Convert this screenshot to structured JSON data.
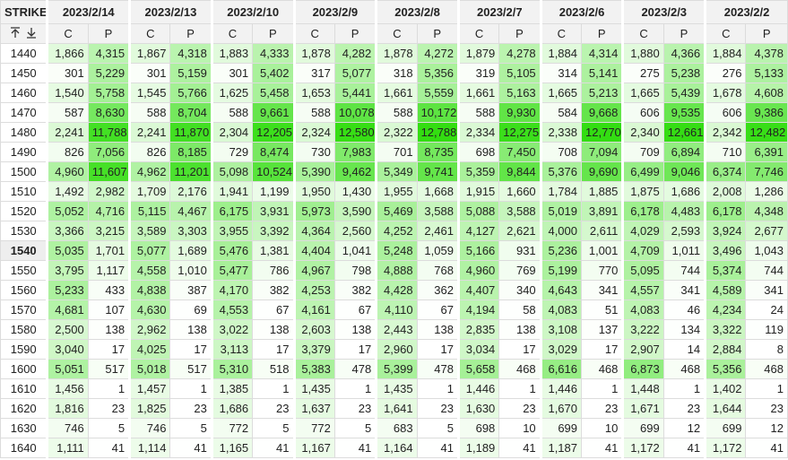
{
  "table": {
    "header": "STRIKE",
    "dates": [
      "2023/2/14",
      "2023/2/13",
      "2023/2/10",
      "2023/2/9",
      "2023/2/8",
      "2023/2/7",
      "2023/2/6",
      "2023/2/3",
      "2023/2/2"
    ],
    "sub": [
      "C",
      "P"
    ],
    "rows": [
      [
        "1440",
        "1,866",
        "4,315",
        "1,867",
        "4,318",
        "1,883",
        "4,333",
        "1,878",
        "4,282",
        "1,878",
        "4,272",
        "1,879",
        "4,278",
        "1,884",
        "4,314",
        "1,880",
        "4,366",
        "1,884",
        "4,378"
      ],
      [
        "1450",
        "301",
        "5,229",
        "301",
        "5,159",
        "301",
        "5,402",
        "317",
        "5,077",
        "318",
        "5,356",
        "319",
        "5,105",
        "314",
        "5,141",
        "275",
        "5,238",
        "276",
        "5,133"
      ],
      [
        "1460",
        "1,540",
        "5,758",
        "1,545",
        "5,766",
        "1,625",
        "5,458",
        "1,653",
        "5,441",
        "1,661",
        "5,559",
        "1,661",
        "5,163",
        "1,665",
        "5,213",
        "1,665",
        "5,439",
        "1,678",
        "4,608"
      ],
      [
        "1470",
        "587",
        "8,630",
        "588",
        "8,704",
        "588",
        "9,661",
        "588",
        "10,078",
        "588",
        "10,172",
        "588",
        "9,930",
        "584",
        "9,668",
        "606",
        "9,535",
        "606",
        "9,386"
      ],
      [
        "1480",
        "2,241",
        "11,788",
        "2,241",
        "11,870",
        "2,304",
        "12,205",
        "2,324",
        "12,580",
        "2,322",
        "12,788",
        "2,334",
        "12,275",
        "2,338",
        "12,770",
        "2,340",
        "12,661",
        "2,342",
        "12,482"
      ],
      [
        "1490",
        "826",
        "7,056",
        "826",
        "8,185",
        "729",
        "8,474",
        "730",
        "7,983",
        "701",
        "8,735",
        "698",
        "7,450",
        "708",
        "7,094",
        "709",
        "6,894",
        "710",
        "6,391"
      ],
      [
        "1500",
        "4,960",
        "11,607",
        "4,962",
        "11,201",
        "5,098",
        "10,524",
        "5,390",
        "9,462",
        "5,349",
        "9,741",
        "5,359",
        "9,844",
        "5,376",
        "9,690",
        "6,499",
        "9,046",
        "6,374",
        "7,746"
      ],
      [
        "1510",
        "1,492",
        "2,982",
        "1,709",
        "2,176",
        "1,941",
        "1,199",
        "1,950",
        "1,430",
        "1,955",
        "1,668",
        "1,915",
        "1,660",
        "1,784",
        "1,885",
        "1,875",
        "1,686",
        "2,008",
        "1,286"
      ],
      [
        "1520",
        "5,052",
        "4,716",
        "5,115",
        "4,467",
        "6,175",
        "3,931",
        "5,973",
        "3,590",
        "5,469",
        "3,588",
        "5,088",
        "3,588",
        "5,019",
        "3,891",
        "6,178",
        "4,483",
        "6,178",
        "4,348"
      ],
      [
        "1530",
        "3,366",
        "3,215",
        "3,589",
        "3,303",
        "3,955",
        "3,392",
        "4,364",
        "2,560",
        "4,252",
        "2,461",
        "4,127",
        "2,621",
        "4,000",
        "2,611",
        "4,029",
        "2,593",
        "3,924",
        "2,677"
      ],
      [
        "1540",
        "5,035",
        "1,701",
        "5,077",
        "1,689",
        "5,476",
        "1,381",
        "4,404",
        "1,041",
        "5,248",
        "1,059",
        "5,166",
        "931",
        "5,236",
        "1,001",
        "4,709",
        "1,011",
        "3,496",
        "1,043"
      ],
      [
        "1550",
        "3,795",
        "1,117",
        "4,558",
        "1,010",
        "5,477",
        "786",
        "4,967",
        "798",
        "4,888",
        "768",
        "4,960",
        "769",
        "5,199",
        "770",
        "5,095",
        "744",
        "5,374",
        "744"
      ],
      [
        "1560",
        "5,233",
        "433",
        "4,838",
        "387",
        "4,170",
        "382",
        "4,253",
        "382",
        "4,428",
        "362",
        "4,407",
        "340",
        "4,643",
        "341",
        "4,557",
        "341",
        "4,589",
        "341"
      ],
      [
        "1570",
        "4,681",
        "107",
        "4,630",
        "69",
        "4,553",
        "67",
        "4,161",
        "67",
        "4,110",
        "67",
        "4,194",
        "58",
        "4,083",
        "51",
        "4,083",
        "46",
        "4,234",
        "24"
      ],
      [
        "1580",
        "2,500",
        "138",
        "2,962",
        "138",
        "3,022",
        "138",
        "2,603",
        "138",
        "2,443",
        "138",
        "2,835",
        "138",
        "3,108",
        "137",
        "3,222",
        "134",
        "3,322",
        "119"
      ],
      [
        "1590",
        "3,040",
        "17",
        "4,025",
        "17",
        "3,113",
        "17",
        "3,379",
        "17",
        "2,960",
        "17",
        "3,034",
        "17",
        "3,029",
        "17",
        "2,907",
        "14",
        "2,884",
        "8"
      ],
      [
        "1600",
        "5,051",
        "517",
        "5,018",
        "517",
        "5,310",
        "518",
        "5,383",
        "478",
        "5,399",
        "478",
        "5,658",
        "468",
        "6,616",
        "468",
        "6,873",
        "468",
        "5,356",
        "468"
      ],
      [
        "1610",
        "1,456",
        "1",
        "1,457",
        "1",
        "1,385",
        "1",
        "1,435",
        "1",
        "1,435",
        "1",
        "1,446",
        "1",
        "1,446",
        "1",
        "1,448",
        "1",
        "1,402",
        "1"
      ],
      [
        "1620",
        "1,816",
        "23",
        "1,825",
        "23",
        "1,686",
        "23",
        "1,637",
        "23",
        "1,641",
        "23",
        "1,630",
        "23",
        "1,670",
        "23",
        "1,671",
        "23",
        "1,644",
        "23"
      ],
      [
        "1630",
        "746",
        "5",
        "746",
        "5",
        "772",
        "5",
        "772",
        "5",
        "683",
        "5",
        "698",
        "10",
        "699",
        "10",
        "699",
        "12",
        "699",
        "12"
      ],
      [
        "1640",
        "1,111",
        "41",
        "1,114",
        "41",
        "1,165",
        "41",
        "1,167",
        "41",
        "1,164",
        "41",
        "1,189",
        "41",
        "1,187",
        "41",
        "1,172",
        "41",
        "1,172",
        "41"
      ]
    ]
  }
}
